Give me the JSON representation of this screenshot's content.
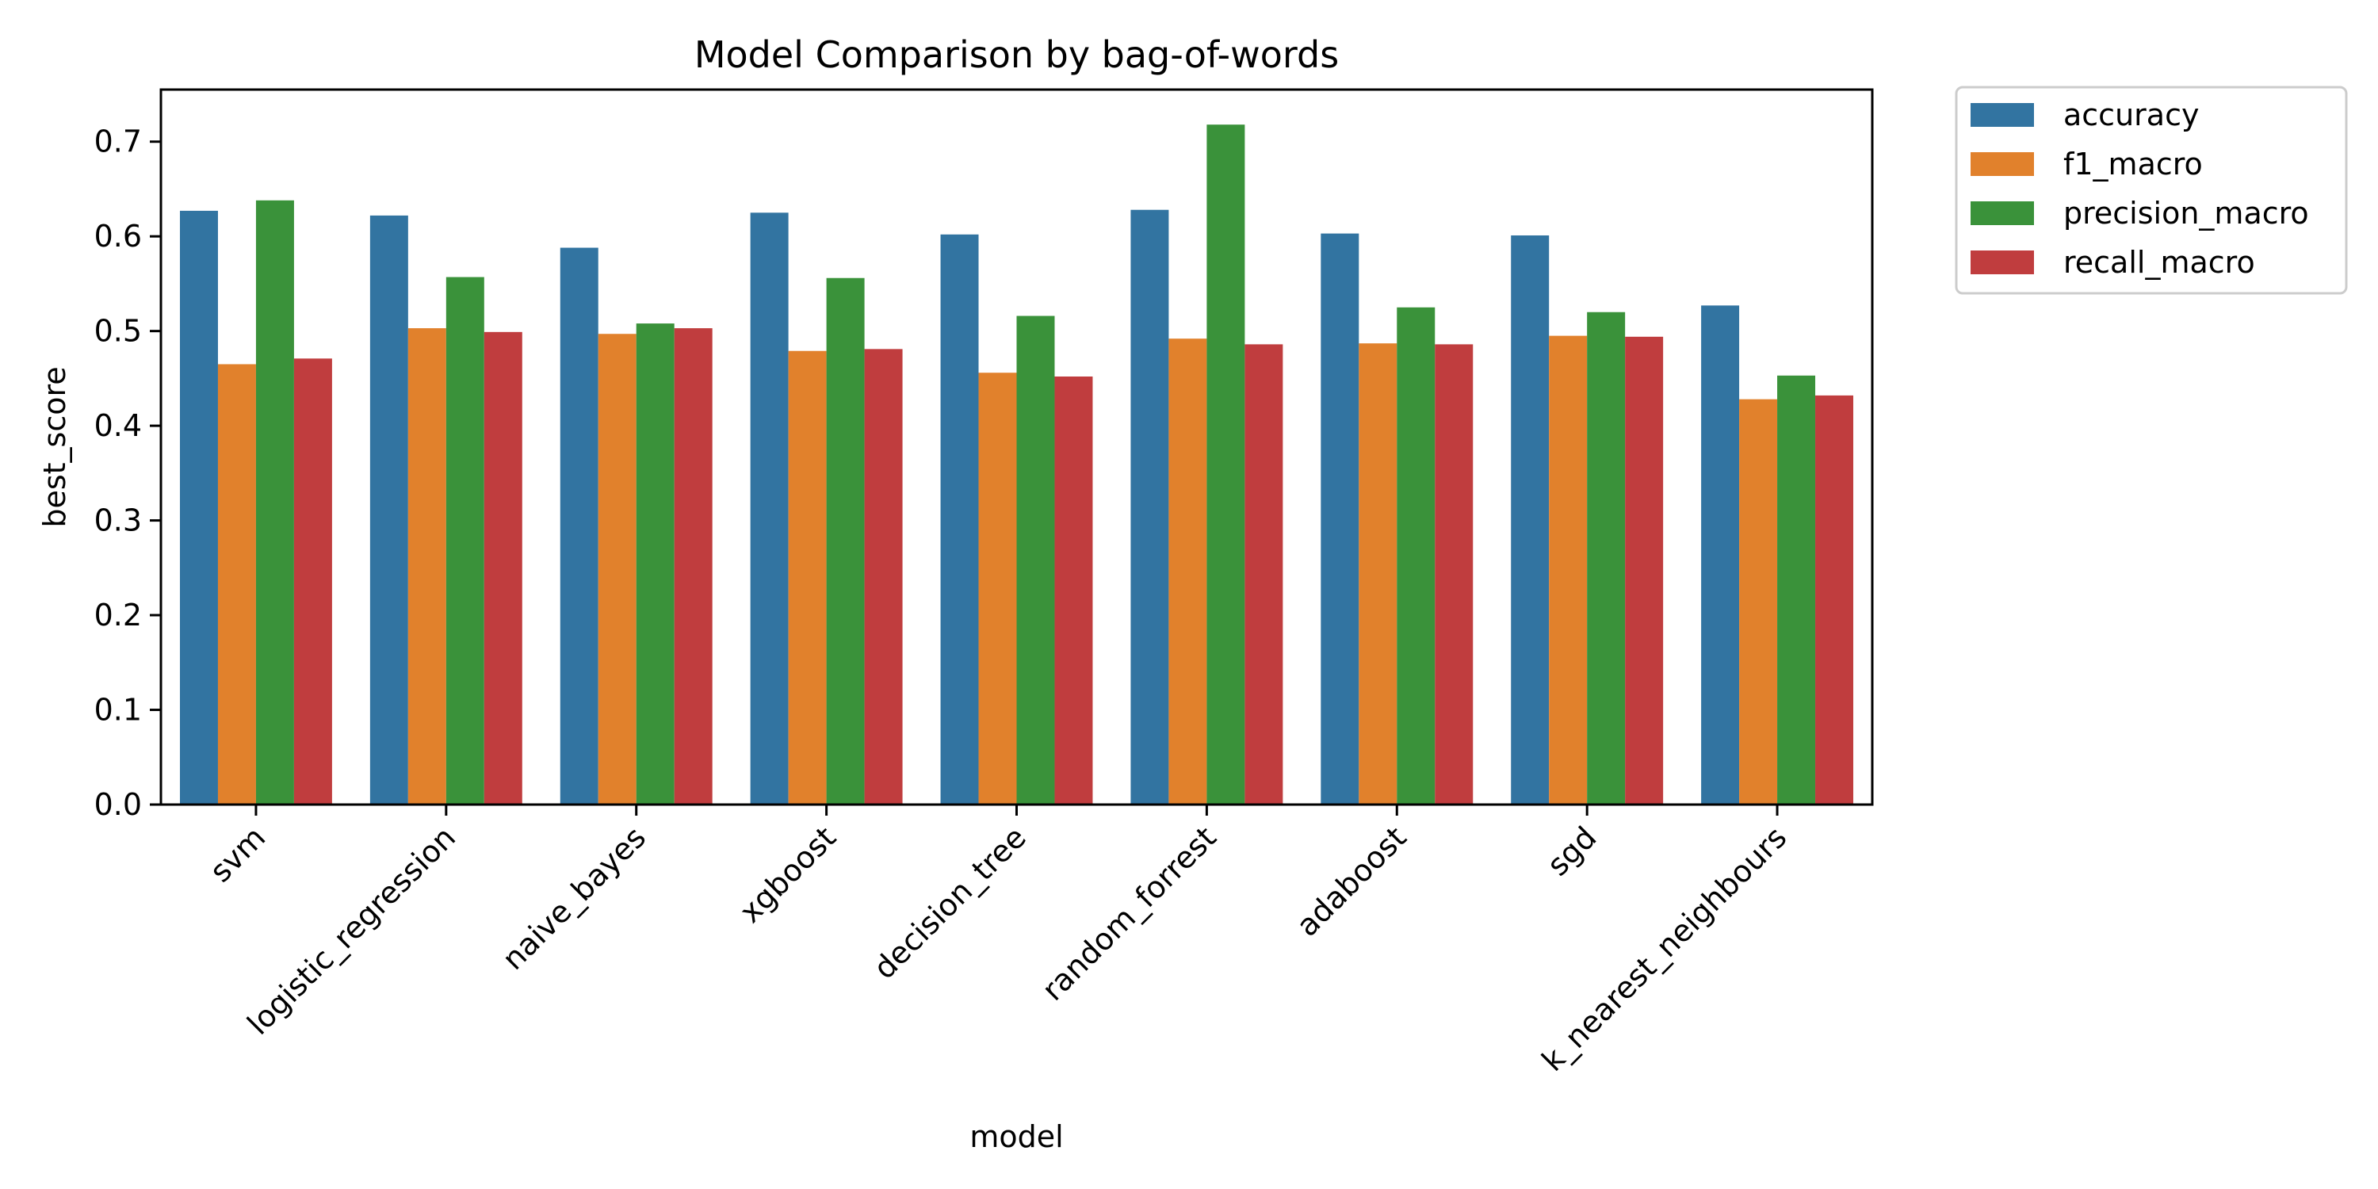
{
  "chart_data": {
    "type": "bar",
    "title": "Model Comparison by bag-of-words",
    "xlabel": "model",
    "ylabel": "best_score",
    "ylim": [
      0,
      0.755
    ],
    "yticks": [
      "0.0",
      "0.1",
      "0.2",
      "0.3",
      "0.4",
      "0.5",
      "0.6",
      "0.7"
    ],
    "grid": false,
    "legend_position": "outside-top-right",
    "categories": [
      "svm",
      "logistic_regression",
      "naive_bayes",
      "xgboost",
      "decision_tree",
      "random_forrest",
      "adaboost",
      "sgd",
      "k_nearest_neighbours"
    ],
    "series": [
      {
        "name": "accuracy",
        "color": "#3274a1",
        "values": [
          0.627,
          0.622,
          0.588,
          0.625,
          0.602,
          0.628,
          0.603,
          0.601,
          0.527
        ]
      },
      {
        "name": "f1_macro",
        "color": "#e1812c",
        "values": [
          0.465,
          0.503,
          0.497,
          0.479,
          0.456,
          0.492,
          0.487,
          0.495,
          0.428
        ]
      },
      {
        "name": "precision_macro",
        "color": "#3a923a",
        "values": [
          0.638,
          0.557,
          0.508,
          0.556,
          0.516,
          0.718,
          0.525,
          0.52,
          0.453
        ]
      },
      {
        "name": "recall_macro",
        "color": "#c03d3e",
        "values": [
          0.471,
          0.499,
          0.503,
          0.481,
          0.452,
          0.486,
          0.486,
          0.494,
          0.432
        ]
      }
    ]
  }
}
